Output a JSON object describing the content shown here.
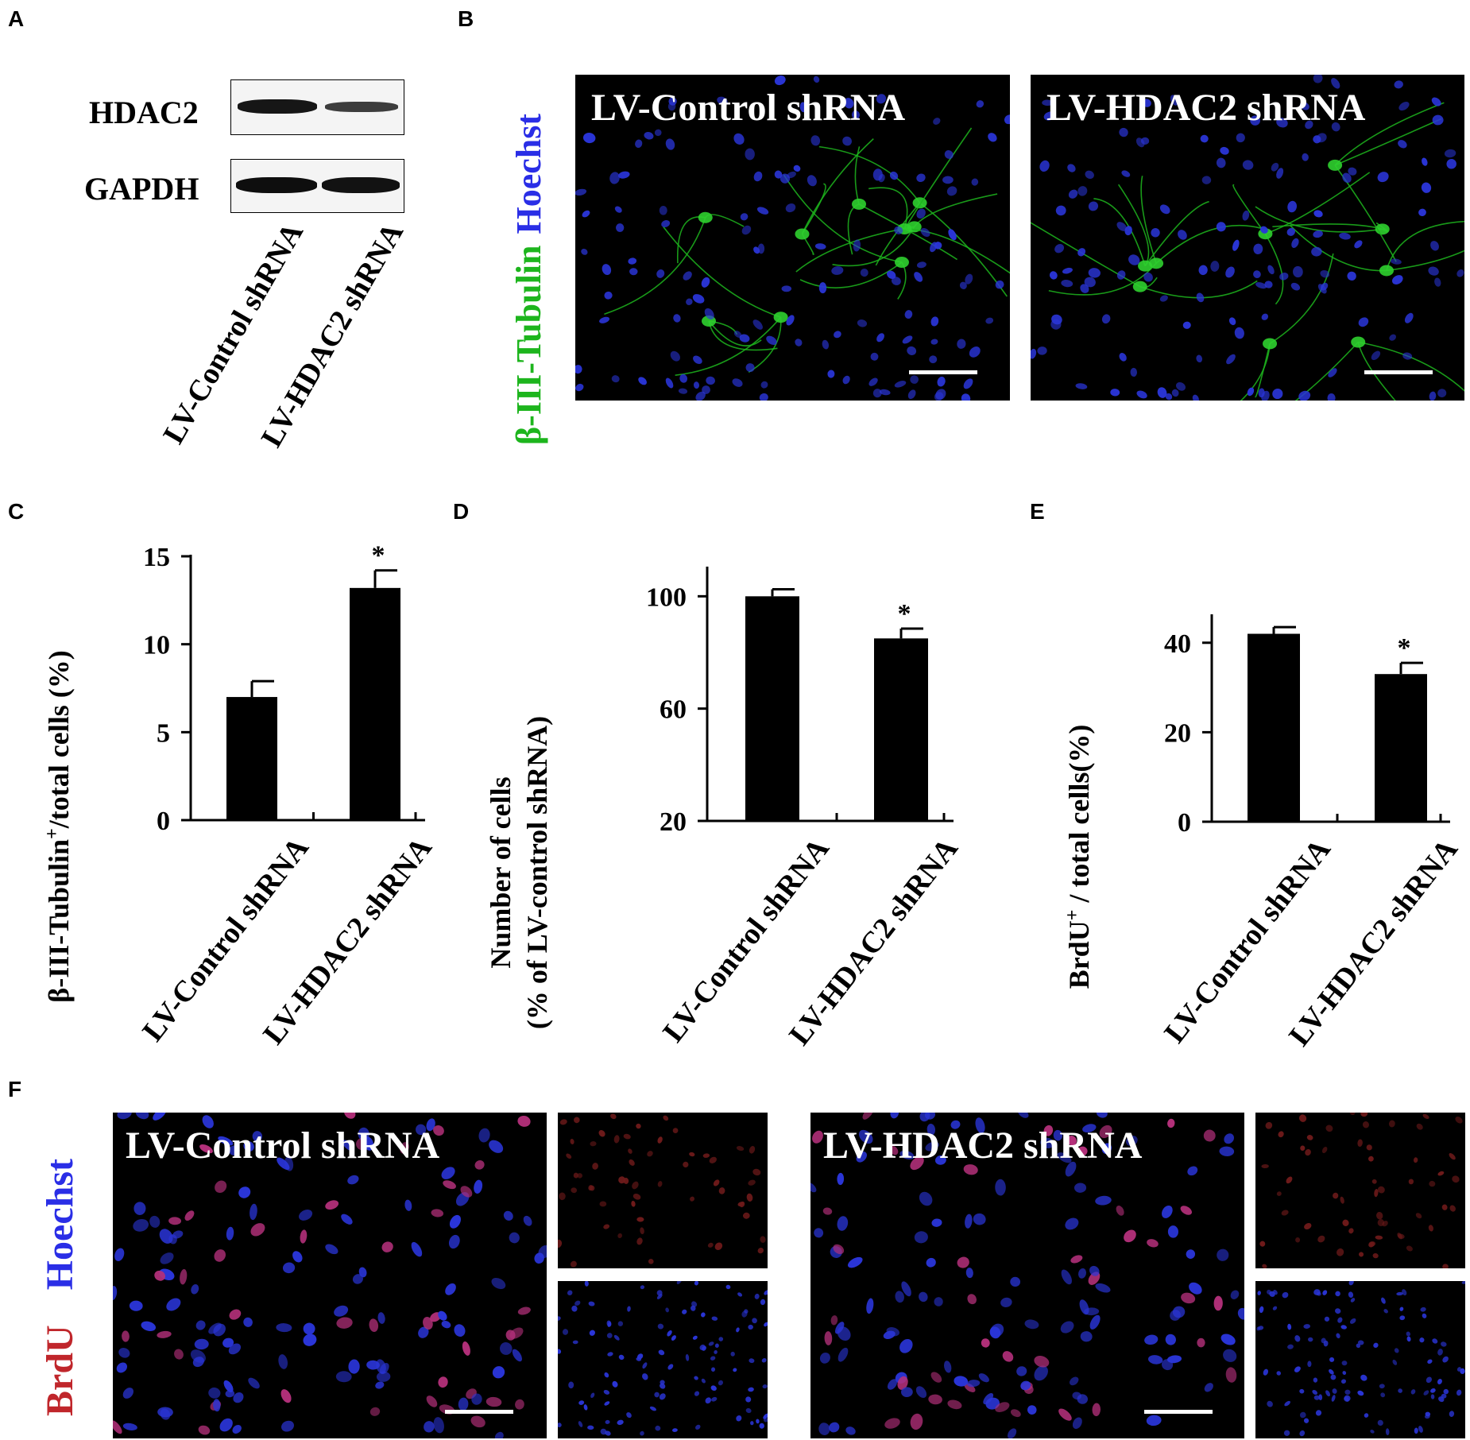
{
  "panel_letters": {
    "a": "A",
    "b": "B",
    "c": "C",
    "d": "D",
    "e": "E",
    "f": "F"
  },
  "panel_a": {
    "bands": [
      "HDAC2",
      "GAPDH"
    ],
    "lanes": [
      "LV-Control shRNA",
      "LV-HDAC2 shRNA"
    ],
    "band_intensity": {
      "HDAC2": [
        0.9,
        0.55
      ],
      "GAPDH": [
        0.95,
        0.95
      ]
    }
  },
  "panel_b": {
    "channel_labels": {
      "green": "β-III-Tubulin",
      "blue": "Hoechst"
    },
    "images": [
      "LV-Control shRNA",
      "LV-HDAC2 shRNA"
    ]
  },
  "panel_f": {
    "channel_labels": {
      "red": "BrdU",
      "blue": "Hoechst"
    },
    "images": [
      "LV-Control shRNA",
      "LV-HDAC2 shRNA"
    ]
  },
  "colors": {
    "green": "#1db51d",
    "blue": "#2a2ee6",
    "red": "#c0262b",
    "bar": "#000000"
  },
  "chart_data": [
    {
      "id": "C",
      "type": "bar",
      "categories": [
        "LV-Control shRNA",
        "LV-HDAC2 shRNA"
      ],
      "values": [
        7.0,
        13.2
      ],
      "errors": [
        0.9,
        1.0
      ],
      "significance": [
        "",
        "*"
      ],
      "ylabel_main": "β-III-Tubulin",
      "ylabel_sup": "+",
      "ylabel_rest": "/total cells (%)",
      "ylim": [
        0,
        15
      ],
      "yticks": [
        0,
        5,
        10,
        15
      ]
    },
    {
      "id": "D",
      "type": "bar",
      "categories": [
        "LV-Control shRNA",
        "LV-HDAC2 shRNA"
      ],
      "values": [
        100,
        85
      ],
      "errors": [
        2.5,
        3.5
      ],
      "significance": [
        "",
        "*"
      ],
      "ylabel_line1": "Number of cells",
      "ylabel_line2": "(% of LV-control shRNA)",
      "ylim": [
        20,
        110
      ],
      "yticks": [
        20,
        60,
        100
      ]
    },
    {
      "id": "E",
      "type": "bar",
      "categories": [
        "LV-Control shRNA",
        "LV-HDAC2 shRNA"
      ],
      "values": [
        42,
        33
      ],
      "errors": [
        1.5,
        2.5
      ],
      "significance": [
        "",
        "*"
      ],
      "ylabel_main": "BrdU",
      "ylabel_sup": "+",
      "ylabel_rest": " / total cells(%)",
      "ylim": [
        0,
        46
      ],
      "yticks": [
        0,
        20,
        40
      ]
    }
  ]
}
